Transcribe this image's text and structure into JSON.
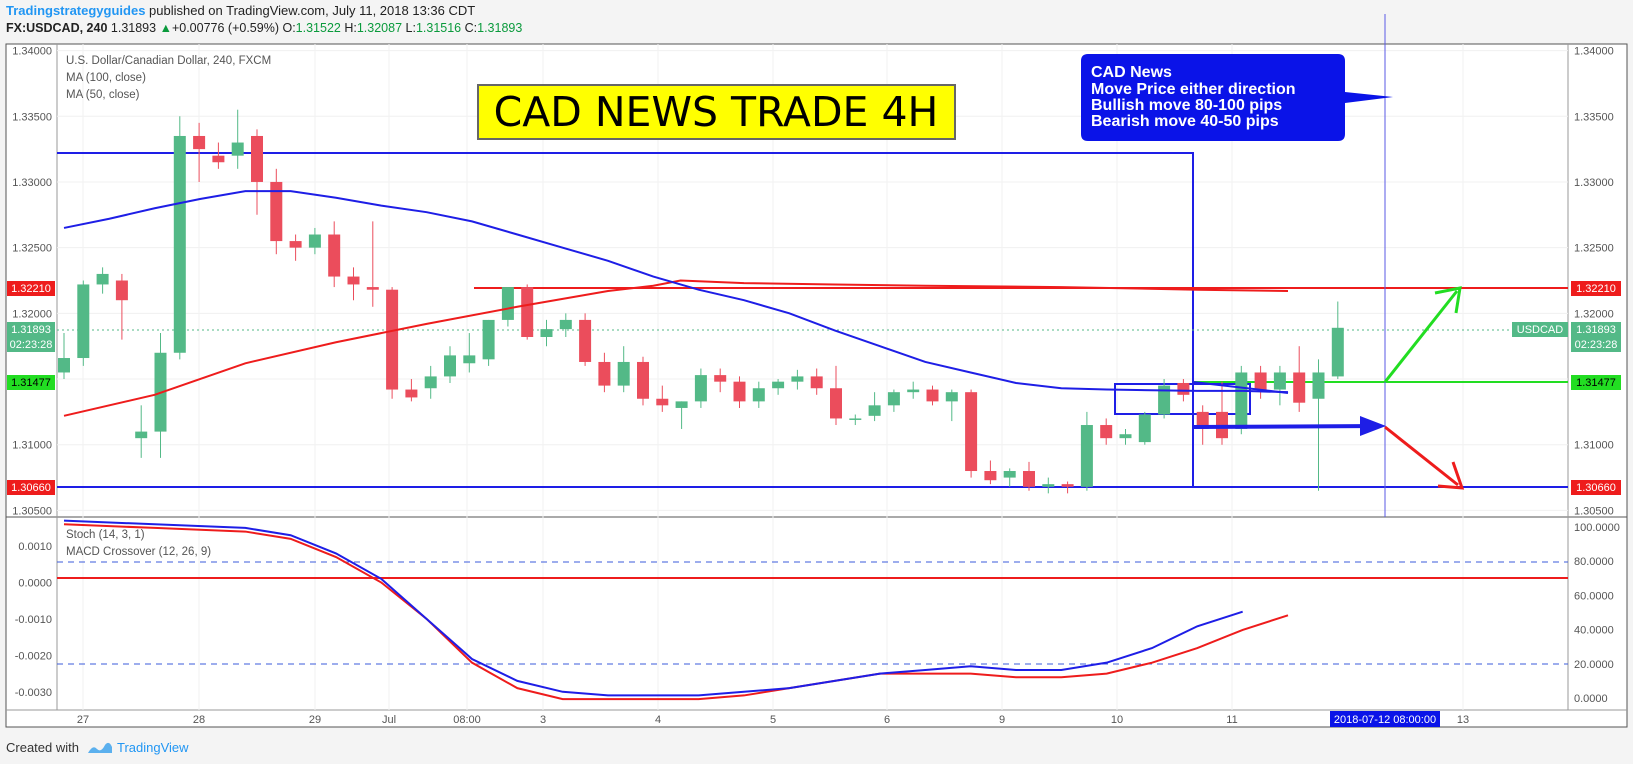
{
  "header": {
    "author": "Tradingstrategyguides",
    "published": " published on TradingView.com, July 11, 2018 13:36 CDT",
    "symbol_interval": "FX:USDCAD, 240",
    "last": "1.31893",
    "arrow": "▲",
    "change": "+0.00776 (+0.59%)",
    "o_label": "O:",
    "o": "1.31522",
    "h_label": "H:",
    "h": "1.32087",
    "l_label": "L:",
    "l": "1.31516",
    "c_label": "C:",
    "c": "1.31893"
  },
  "legend": {
    "title": "U.S. Dollar/Canadian Dollar, 240, FXCM",
    "ma100": "MA (100, close)",
    "ma50": "MA (50, close)",
    "stoch": "Stoch (14, 3, 1)",
    "macd": "MACD Crossover (12, 26, 9)"
  },
  "annotations": {
    "title_box": "CAD NEWS TRADE 4H",
    "callout_lines": [
      "CAD News",
      "Move Price either direction",
      "Bullish move 80-100 pips",
      "Bearish move 40-50 pips"
    ]
  },
  "labels": {
    "resistance": "1.32210",
    "support": "1.30660",
    "entry": "1.31477",
    "last_price": "1.31893",
    "countdown": "02:23:28",
    "symbol_tag": "USDCAD",
    "cursor_date": "2018-07-12 08:00:00"
  },
  "footer": {
    "created": "Created with",
    "brand": "TradingView"
  },
  "colors": {
    "bull": "#53b987",
    "bear": "#eb4d5c",
    "ma_blue": "#1e1ee6",
    "ma_red": "#ee1c1c",
    "title_bg": "#ffff00",
    "callout_bg": "#0a13e8",
    "entry_green": "#22dd22"
  },
  "chart_data": [
    {
      "type": "candlestick",
      "symbol": "FX:USDCAD",
      "interval": "240",
      "x_ticks": [
        "27",
        "28",
        "29",
        "Jul",
        "08:00",
        "3",
        "4",
        "5",
        "6",
        "9",
        "10",
        "11",
        "2018-07-12 08:00:00",
        "13"
      ],
      "ylim": [
        1.3045,
        1.3405
      ],
      "y_ticks": [
        "1.34000",
        "1.33500",
        "1.33000",
        "1.32500",
        "1.32000",
        "1.31500",
        "1.31000",
        "1.30500"
      ],
      "ohlc": [
        [
          1.3155,
          1.3185,
          1.315,
          1.3166
        ],
        [
          1.3166,
          1.3225,
          1.316,
          1.3222
        ],
        [
          1.3222,
          1.3235,
          1.3215,
          1.323
        ],
        [
          1.3225,
          1.323,
          1.318,
          1.321
        ],
        [
          1.3105,
          1.313,
          1.309,
          1.311
        ],
        [
          1.311,
          1.3185,
          1.309,
          1.317
        ],
        [
          1.317,
          1.335,
          1.3165,
          1.3335
        ],
        [
          1.3335,
          1.3345,
          1.33,
          1.3325
        ],
        [
          1.332,
          1.333,
          1.331,
          1.3315
        ],
        [
          1.332,
          1.3355,
          1.331,
          1.333
        ],
        [
          1.3335,
          1.334,
          1.3275,
          1.33
        ],
        [
          1.33,
          1.331,
          1.3245,
          1.3255
        ],
        [
          1.3255,
          1.326,
          1.324,
          1.325
        ],
        [
          1.325,
          1.3265,
          1.3245,
          1.326
        ],
        [
          1.326,
          1.327,
          1.322,
          1.3228
        ],
        [
          1.3228,
          1.3235,
          1.321,
          1.3222
        ],
        [
          1.322,
          1.327,
          1.3205,
          1.3218
        ],
        [
          1.3218,
          1.322,
          1.3135,
          1.3142
        ],
        [
          1.3142,
          1.315,
          1.3133,
          1.3136
        ],
        [
          1.3143,
          1.316,
          1.3135,
          1.3152
        ],
        [
          1.3152,
          1.3175,
          1.3147,
          1.3168
        ],
        [
          1.3162,
          1.3185,
          1.3155,
          1.3168
        ],
        [
          1.3165,
          1.3195,
          1.316,
          1.3195
        ],
        [
          1.3195,
          1.322,
          1.319,
          1.322
        ],
        [
          1.322,
          1.3222,
          1.318,
          1.3182
        ],
        [
          1.3182,
          1.3195,
          1.3175,
          1.3188
        ],
        [
          1.3188,
          1.32,
          1.3182,
          1.3195
        ],
        [
          1.3195,
          1.32,
          1.316,
          1.3163
        ],
        [
          1.3163,
          1.317,
          1.314,
          1.3145
        ],
        [
          1.3145,
          1.3175,
          1.314,
          1.3163
        ],
        [
          1.3163,
          1.3167,
          1.313,
          1.3135
        ],
        [
          1.3135,
          1.3145,
          1.3125,
          1.313
        ],
        [
          1.3128,
          1.3133,
          1.3112,
          1.3133
        ],
        [
          1.3133,
          1.3158,
          1.3128,
          1.3153
        ],
        [
          1.3153,
          1.3158,
          1.314,
          1.3148
        ],
        [
          1.3148,
          1.3152,
          1.3128,
          1.3133
        ],
        [
          1.3133,
          1.3148,
          1.3128,
          1.3143
        ],
        [
          1.3143,
          1.315,
          1.3138,
          1.3148
        ],
        [
          1.3148,
          1.3157,
          1.3142,
          1.3152
        ],
        [
          1.3152,
          1.3158,
          1.3138,
          1.3143
        ],
        [
          1.3143,
          1.316,
          1.3115,
          1.312
        ],
        [
          1.312,
          1.3123,
          1.3115,
          1.312
        ],
        [
          1.3122,
          1.314,
          1.3118,
          1.313
        ],
        [
          1.313,
          1.3142,
          1.3125,
          1.314
        ],
        [
          1.314,
          1.3148,
          1.3135,
          1.3142
        ],
        [
          1.3142,
          1.3145,
          1.313,
          1.3133
        ],
        [
          1.3133,
          1.3142,
          1.3118,
          1.314
        ],
        [
          1.314,
          1.3142,
          1.3075,
          1.308
        ],
        [
          1.308,
          1.3088,
          1.307,
          1.3073
        ],
        [
          1.3075,
          1.3082,
          1.3068,
          1.308
        ],
        [
          1.308,
          1.3087,
          1.3065,
          1.3068
        ],
        [
          1.3068,
          1.3075,
          1.3063,
          1.307
        ],
        [
          1.307,
          1.3072,
          1.3063,
          1.3068
        ],
        [
          1.3068,
          1.3125,
          1.3065,
          1.3115
        ],
        [
          1.3115,
          1.312,
          1.31,
          1.3105
        ],
        [
          1.3105,
          1.3112,
          1.31,
          1.3108
        ],
        [
          1.3102,
          1.3125,
          1.31,
          1.3123
        ],
        [
          1.3123,
          1.315,
          1.312,
          1.3145
        ],
        [
          1.3147,
          1.315,
          1.3133,
          1.3138
        ],
        [
          1.3125,
          1.313,
          1.31,
          1.3112
        ],
        [
          1.3125,
          1.3148,
          1.31,
          1.3105
        ],
        [
          1.3112,
          1.316,
          1.3108,
          1.3155
        ],
        [
          1.3155,
          1.316,
          1.3135,
          1.3142
        ],
        [
          1.3142,
          1.316,
          1.313,
          1.3155
        ],
        [
          1.3155,
          1.3175,
          1.3125,
          1.3132
        ],
        [
          1.3135,
          1.3165,
          1.3065,
          1.3155
        ],
        [
          1.3152,
          1.3209,
          1.315,
          1.3189
        ]
      ],
      "ma100": [
        [
          0,
          1.3122
        ],
        [
          10,
          1.3138
        ],
        [
          20,
          1.3162
        ],
        [
          30,
          1.3178
        ],
        [
          40,
          1.3192
        ],
        [
          50,
          1.3205
        ],
        [
          60,
          1.3217
        ],
        [
          65,
          1.3221
        ],
        [
          68,
          1.3225
        ],
        [
          75,
          1.3223
        ],
        [
          85,
          1.3222
        ],
        [
          95,
          1.3221
        ],
        [
          110,
          1.322
        ],
        [
          125,
          1.3218
        ],
        [
          135,
          1.3217
        ]
      ],
      "ma50": [
        [
          0,
          1.3265
        ],
        [
          5,
          1.3272
        ],
        [
          10,
          1.328
        ],
        [
          15,
          1.3287
        ],
        [
          20,
          1.3293
        ],
        [
          25,
          1.3293
        ],
        [
          30,
          1.3288
        ],
        [
          35,
          1.3282
        ],
        [
          40,
          1.3277
        ],
        [
          45,
          1.327
        ],
        [
          50,
          1.326
        ],
        [
          55,
          1.325
        ],
        [
          60,
          1.324
        ],
        [
          65,
          1.3228
        ],
        [
          70,
          1.3218
        ],
        [
          75,
          1.321
        ],
        [
          80,
          1.32
        ],
        [
          85,
          1.3187
        ],
        [
          90,
          1.3175
        ],
        [
          95,
          1.3163
        ],
        [
          100,
          1.3155
        ],
        [
          105,
          1.3147
        ],
        [
          110,
          1.3143
        ],
        [
          115,
          1.3142
        ],
        [
          125,
          1.3141
        ],
        [
          130,
          1.3141
        ],
        [
          135,
          1.314
        ]
      ],
      "levels": [
        1.3221,
        1.3066,
        1.31477
      ]
    },
    {
      "type": "line",
      "name": "MACD Crossover / Stoch",
      "ylim_left": [
        -0.0035,
        0.0018
      ],
      "y_ticks_left": [
        "0.0010",
        "0.0000",
        "-0.0010",
        "-0.0020",
        "-0.0030"
      ],
      "y_ticks_right": [
        "100.0000",
        "80.0000",
        "60.0000",
        "40.0000",
        "20.0000",
        "0.0000"
      ],
      "macd": [
        [
          0,
          0.0017
        ],
        [
          10,
          0.0016
        ],
        [
          20,
          0.0015
        ],
        [
          25,
          0.0013
        ],
        [
          30,
          0.0008
        ],
        [
          35,
          0.0001
        ],
        [
          40,
          -0.001
        ],
        [
          45,
          -0.0021
        ],
        [
          50,
          -0.0027
        ],
        [
          55,
          -0.003
        ],
        [
          60,
          -0.0031
        ],
        [
          65,
          -0.0031
        ],
        [
          70,
          -0.0031
        ],
        [
          75,
          -0.003
        ],
        [
          80,
          -0.0029
        ],
        [
          85,
          -0.0027
        ],
        [
          90,
          -0.0025
        ],
        [
          95,
          -0.0024
        ],
        [
          100,
          -0.0023
        ],
        [
          105,
          -0.0024
        ],
        [
          110,
          -0.0024
        ],
        [
          115,
          -0.0022
        ],
        [
          120,
          -0.0018
        ],
        [
          125,
          -0.0012
        ],
        [
          130,
          -0.0008
        ]
      ],
      "signal": [
        [
          0,
          0.0016
        ],
        [
          10,
          0.0015
        ],
        [
          20,
          0.0014
        ],
        [
          25,
          0.0012
        ],
        [
          30,
          0.0007
        ],
        [
          35,
          0.0
        ],
        [
          40,
          -0.001
        ],
        [
          45,
          -0.0022
        ],
        [
          50,
          -0.0029
        ],
        [
          55,
          -0.0032
        ],
        [
          60,
          -0.0032
        ],
        [
          65,
          -0.0032
        ],
        [
          70,
          -0.0032
        ],
        [
          75,
          -0.0031
        ],
        [
          80,
          -0.0029
        ],
        [
          85,
          -0.0027
        ],
        [
          90,
          -0.0025
        ],
        [
          95,
          -0.0025
        ],
        [
          100,
          -0.0025
        ],
        [
          105,
          -0.0026
        ],
        [
          110,
          -0.0026
        ],
        [
          115,
          -0.0025
        ],
        [
          120,
          -0.0022
        ],
        [
          125,
          -0.0018
        ],
        [
          130,
          -0.0013
        ],
        [
          135,
          -0.0009
        ]
      ]
    }
  ]
}
